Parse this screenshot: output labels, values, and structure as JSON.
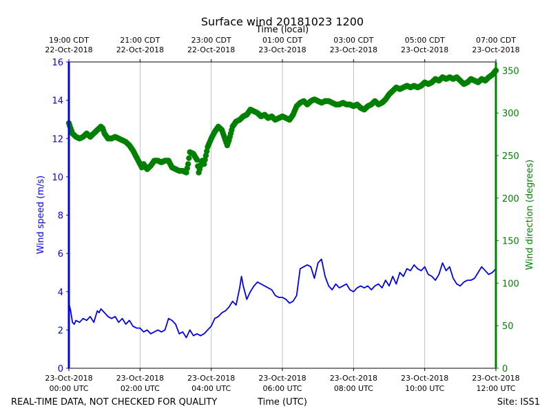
{
  "chart_data": {
    "type": "line",
    "title": "Surface wind 20181023 1200",
    "top_axis_label": "Time (local)",
    "xlabel": "Time (UTC)",
    "ylabel_left": "Wind speed (m/s)",
    "ylabel_right": "Wind direction (degrees)",
    "footer_left": "REAL-TIME DATA, NOT CHECKED FOR QUALITY",
    "footer_right": "Site: ISS1",
    "x_range_hours": [
      0,
      12
    ],
    "ylim_left": [
      0,
      16
    ],
    "ylim_right": [
      0,
      360
    ],
    "grid": "vertical",
    "bottom_ticks": [
      {
        "h": 0,
        "l1": "23-Oct-2018",
        "l2": "00:00 UTC"
      },
      {
        "h": 2,
        "l1": "23-Oct-2018",
        "l2": "02:00 UTC"
      },
      {
        "h": 4,
        "l1": "23-Oct-2018",
        "l2": "04:00 UTC"
      },
      {
        "h": 6,
        "l1": "23-Oct-2018",
        "l2": "06:00 UTC"
      },
      {
        "h": 8,
        "l1": "23-Oct-2018",
        "l2": "08:00 UTC"
      },
      {
        "h": 10,
        "l1": "23-Oct-2018",
        "l2": "10:00 UTC"
      },
      {
        "h": 12,
        "l1": "23-Oct-2018",
        "l2": "12:00 UTC"
      }
    ],
    "top_ticks": [
      {
        "h": 0,
        "l1": "19:00 CDT",
        "l2": "22-Oct-2018"
      },
      {
        "h": 2,
        "l1": "21:00 CDT",
        "l2": "22-Oct-2018"
      },
      {
        "h": 4,
        "l1": "23:00 CDT",
        "l2": "22-Oct-2018"
      },
      {
        "h": 6,
        "l1": "01:00 CDT",
        "l2": "23-Oct-2018"
      },
      {
        "h": 8,
        "l1": "03:00 CDT",
        "l2": "23-Oct-2018"
      },
      {
        "h": 10,
        "l1": "05:00 CDT",
        "l2": "23-Oct-2018"
      },
      {
        "h": 12,
        "l1": "07:00 CDT",
        "l2": "23-Oct-2018"
      }
    ],
    "left_ticks": [
      0,
      2,
      4,
      6,
      8,
      10,
      12,
      14,
      16
    ],
    "right_ticks": [
      0,
      50,
      100,
      150,
      200,
      250,
      300,
      350
    ],
    "colors": {
      "speed": "#0000ee",
      "direction": "#008000",
      "grid": "#b0b0b0"
    },
    "series": [
      {
        "role": "wind_speed",
        "axis": "left",
        "hours": [
          0,
          0.05,
          0.1,
          0.15,
          0.2,
          0.3,
          0.4,
          0.5,
          0.6,
          0.7,
          0.8,
          0.85,
          0.9,
          1.0,
          1.1,
          1.2,
          1.3,
          1.4,
          1.5,
          1.6,
          1.7,
          1.8,
          1.9,
          2.0,
          2.1,
          2.2,
          2.3,
          2.4,
          2.5,
          2.6,
          2.7,
          2.8,
          2.9,
          3.0,
          3.1,
          3.2,
          3.3,
          3.4,
          3.5,
          3.6,
          3.7,
          3.8,
          3.9,
          4.0,
          4.1,
          4.2,
          4.3,
          4.4,
          4.5,
          4.6,
          4.7,
          4.8,
          4.85,
          4.9,
          5.0,
          5.1,
          5.2,
          5.3,
          5.4,
          5.5,
          5.6,
          5.7,
          5.8,
          5.9,
          6.0,
          6.1,
          6.2,
          6.3,
          6.4,
          6.5,
          6.6,
          6.7,
          6.8,
          6.9,
          7.0,
          7.1,
          7.2,
          7.3,
          7.4,
          7.5,
          7.6,
          7.7,
          7.8,
          7.9,
          8.0,
          8.1,
          8.2,
          8.3,
          8.4,
          8.5,
          8.6,
          8.7,
          8.8,
          8.9,
          9.0,
          9.1,
          9.2,
          9.3,
          9.4,
          9.5,
          9.6,
          9.7,
          9.8,
          9.9,
          10.0,
          10.1,
          10.2,
          10.3,
          10.4,
          10.5,
          10.6,
          10.7,
          10.8,
          10.9,
          11.0,
          11.1,
          11.2,
          11.3,
          11.4,
          11.5,
          11.6,
          11.7,
          11.8,
          11.9,
          12.0
        ],
        "values": [
          3.4,
          3.0,
          2.4,
          2.3,
          2.5,
          2.4,
          2.6,
          2.5,
          2.7,
          2.4,
          3.0,
          2.9,
          3.1,
          2.9,
          2.7,
          2.6,
          2.7,
          2.4,
          2.6,
          2.3,
          2.5,
          2.2,
          2.1,
          2.1,
          1.9,
          2.0,
          1.8,
          1.9,
          2.0,
          1.9,
          2.0,
          2.6,
          2.5,
          2.3,
          1.8,
          1.9,
          1.6,
          2.0,
          1.7,
          1.8,
          1.7,
          1.8,
          2.0,
          2.2,
          2.6,
          2.7,
          2.9,
          3.0,
          3.2,
          3.5,
          3.3,
          4.2,
          4.8,
          4.3,
          3.6,
          4.0,
          4.3,
          4.5,
          4.4,
          4.3,
          4.2,
          4.1,
          3.8,
          3.7,
          3.7,
          3.6,
          3.4,
          3.5,
          3.8,
          5.2,
          5.3,
          5.4,
          5.3,
          4.7,
          5.5,
          5.7,
          4.8,
          4.3,
          4.1,
          4.4,
          4.2,
          4.3,
          4.4,
          4.1,
          4.0,
          4.2,
          4.3,
          4.2,
          4.3,
          4.1,
          4.3,
          4.4,
          4.2,
          4.6,
          4.3,
          4.8,
          4.4,
          5.0,
          4.8,
          5.2,
          5.1,
          5.4,
          5.2,
          5.1,
          5.3,
          4.9,
          4.8,
          4.6,
          4.9,
          5.5,
          5.1,
          5.3,
          4.7,
          4.4,
          4.3,
          4.5,
          4.6,
          4.6,
          4.7,
          5.0,
          5.3,
          5.1,
          4.9,
          5.0,
          5.2
        ]
      },
      {
        "role": "wind_direction",
        "axis": "right",
        "hours": [
          0,
          0.05,
          0.1,
          0.2,
          0.3,
          0.4,
          0.5,
          0.6,
          0.7,
          0.8,
          0.9,
          0.95,
          1.0,
          1.1,
          1.2,
          1.3,
          1.4,
          1.5,
          1.6,
          1.7,
          1.8,
          1.9,
          2.0,
          2.05,
          2.1,
          2.2,
          2.3,
          2.4,
          2.5,
          2.6,
          2.7,
          2.8,
          2.9,
          3.0,
          3.1,
          3.2,
          3.3,
          3.35,
          3.4,
          3.5,
          3.6,
          3.65,
          3.7,
          3.75,
          3.8,
          3.9,
          4.0,
          4.1,
          4.2,
          4.3,
          4.4,
          4.45,
          4.5,
          4.6,
          4.7,
          4.8,
          4.9,
          5.0,
          5.1,
          5.2,
          5.3,
          5.4,
          5.5,
          5.6,
          5.7,
          5.8,
          5.9,
          6.0,
          6.1,
          6.2,
          6.3,
          6.4,
          6.5,
          6.6,
          6.7,
          6.8,
          6.9,
          7.0,
          7.1,
          7.2,
          7.3,
          7.4,
          7.5,
          7.6,
          7.7,
          7.8,
          7.9,
          8.0,
          8.1,
          8.2,
          8.3,
          8.4,
          8.5,
          8.6,
          8.7,
          8.8,
          8.9,
          9.0,
          9.1,
          9.2,
          9.3,
          9.4,
          9.5,
          9.6,
          9.7,
          9.8,
          9.9,
          10.0,
          10.1,
          10.2,
          10.3,
          10.4,
          10.5,
          10.6,
          10.7,
          10.8,
          10.9,
          11.0,
          11.1,
          11.2,
          11.3,
          11.4,
          11.5,
          11.6,
          11.7,
          11.8,
          11.9,
          12.0
        ],
        "values": [
          288,
          282,
          276,
          272,
          270,
          272,
          276,
          272,
          276,
          280,
          284,
          282,
          276,
          270,
          270,
          272,
          270,
          268,
          266,
          262,
          256,
          248,
          240,
          236,
          240,
          234,
          238,
          244,
          244,
          242,
          244,
          244,
          236,
          234,
          232,
          232,
          230,
          240,
          254,
          252,
          245,
          230,
          238,
          244,
          240,
          260,
          270,
          278,
          284,
          280,
          268,
          262,
          268,
          284,
          290,
          292,
          296,
          298,
          304,
          302,
          300,
          296,
          298,
          294,
          296,
          292,
          294,
          296,
          294,
          292,
          298,
          308,
          312,
          314,
          310,
          314,
          316,
          314,
          312,
          314,
          314,
          312,
          310,
          310,
          312,
          310,
          310,
          308,
          310,
          306,
          304,
          308,
          310,
          314,
          310,
          312,
          316,
          322,
          326,
          330,
          328,
          330,
          332,
          330,
          332,
          330,
          332,
          336,
          334,
          336,
          340,
          338,
          342,
          340,
          342,
          340,
          342,
          338,
          334,
          336,
          340,
          338,
          336,
          340,
          338,
          342,
          345,
          350
        ]
      }
    ]
  }
}
